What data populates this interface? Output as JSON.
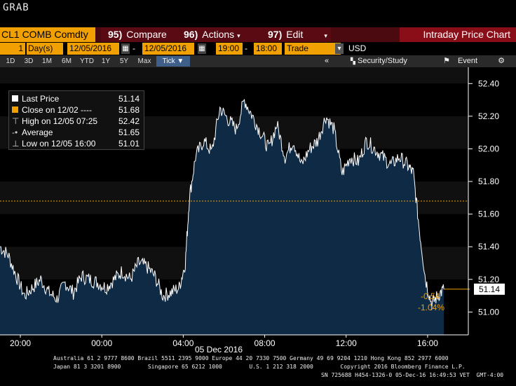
{
  "header": {
    "grab": "GRAB"
  },
  "toolbar": {
    "ticker": "CL1 COMB Comdty",
    "compare_num": "95)",
    "compare": "Compare",
    "actions_num": "96)",
    "actions": "Actions",
    "edit_num": "97)",
    "edit": "Edit",
    "title": "Intraday Price Chart"
  },
  "params": {
    "period_count": "1",
    "period_unit": "Day(s)",
    "start_date": "12/05/2016",
    "end_date": "12/05/2016",
    "start_time": "19:00",
    "end_time": "18:00",
    "field": "Trade",
    "currency": "USD"
  },
  "ranges": {
    "items": [
      "1D",
      "3D",
      "1M",
      "6M",
      "YTD",
      "1Y",
      "5Y",
      "Max"
    ],
    "tick": "Tick",
    "security_study": "Security/Study",
    "event": "Event"
  },
  "legend": {
    "last_label": "Last Price",
    "last_value": "51.14",
    "close_label": "Close on 12/02 ----",
    "close_value": "51.68",
    "high_label": "High on 12/05 07:25",
    "high_value": "52.42",
    "avg_label": "Average",
    "avg_value": "51.65",
    "low_label": "Low on 12/05 16:00",
    "low_value": "51.01"
  },
  "annotations": {
    "last_price_tag": "51.14",
    "change": "-0.54",
    "change_pct": "-1.04%"
  },
  "colors": {
    "accent": "#f0a000",
    "area": "#0f2a45",
    "line": "#ffffff",
    "close_line": "#f0a000"
  },
  "chart_data": {
    "type": "area",
    "xlabel": "05 Dec 2016",
    "x_ticks": [
      "20:00",
      "00:00",
      "04:00",
      "08:00",
      "12:00",
      "16:00"
    ],
    "x_tick_hours": [
      -4,
      0,
      4,
      8,
      12,
      16
    ],
    "x_range_hours": [
      -5,
      18
    ],
    "y_ticks": [
      51.0,
      51.2,
      51.4,
      51.6,
      51.8,
      52.0,
      52.2,
      52.4
    ],
    "ylim": [
      50.86,
      52.5
    ],
    "grid": true,
    "prev_close": 51.68,
    "series": [
      {
        "name": "Last Price",
        "x": [
          -5.0,
          -4.6,
          -4.2,
          -3.8,
          -3.4,
          -3.0,
          -2.6,
          -2.2,
          -1.8,
          -1.4,
          -1.0,
          -0.6,
          -0.2,
          0.2,
          0.6,
          1.0,
          1.4,
          1.8,
          2.2,
          2.6,
          3.0,
          3.4,
          3.8,
          4.1,
          4.3,
          4.6,
          5.0,
          5.4,
          5.8,
          6.2,
          6.6,
          7.0,
          7.4,
          7.8,
          8.2,
          8.6,
          9.0,
          9.4,
          9.8,
          10.2,
          10.6,
          11.0,
          11.4,
          11.8,
          12.2,
          12.6,
          13.0,
          13.4,
          13.8,
          14.2,
          14.6,
          15.0,
          15.3,
          15.6,
          15.9,
          16.2,
          16.5,
          16.8
        ],
        "y": [
          51.4,
          51.35,
          51.22,
          51.1,
          51.15,
          51.2,
          51.12,
          51.08,
          51.18,
          51.12,
          51.22,
          51.2,
          51.18,
          51.15,
          51.2,
          51.25,
          51.2,
          51.3,
          51.28,
          51.22,
          51.1,
          51.12,
          51.15,
          51.3,
          51.7,
          51.95,
          52.05,
          51.98,
          52.25,
          52.18,
          52.12,
          52.3,
          52.2,
          52.1,
          52.0,
          52.15,
          51.95,
          52.05,
          51.9,
          52.0,
          52.05,
          52.2,
          52.12,
          51.85,
          51.95,
          51.92,
          52.05,
          52.0,
          51.95,
          51.9,
          51.95,
          51.9,
          51.85,
          51.5,
          51.2,
          51.05,
          51.1,
          51.14
        ]
      }
    ]
  },
  "footer": {
    "line1": "Australia 61 2 9777 8600 Brazil 5511 2395 9000 Europe 44 20 7330 7500 Germany 49 69 9204 1210 Hong Kong 852 2977 6000",
    "line2": "Japan 81 3 3201 8900        Singapore 65 6212 1000        U.S. 1 212 318 2000        Copyright 2016 Bloomberg Finance L.P.",
    "line3": "SN 725688 H454-1326-0 05-Dec-16 16:49:53 VET  GMT-4:00"
  }
}
